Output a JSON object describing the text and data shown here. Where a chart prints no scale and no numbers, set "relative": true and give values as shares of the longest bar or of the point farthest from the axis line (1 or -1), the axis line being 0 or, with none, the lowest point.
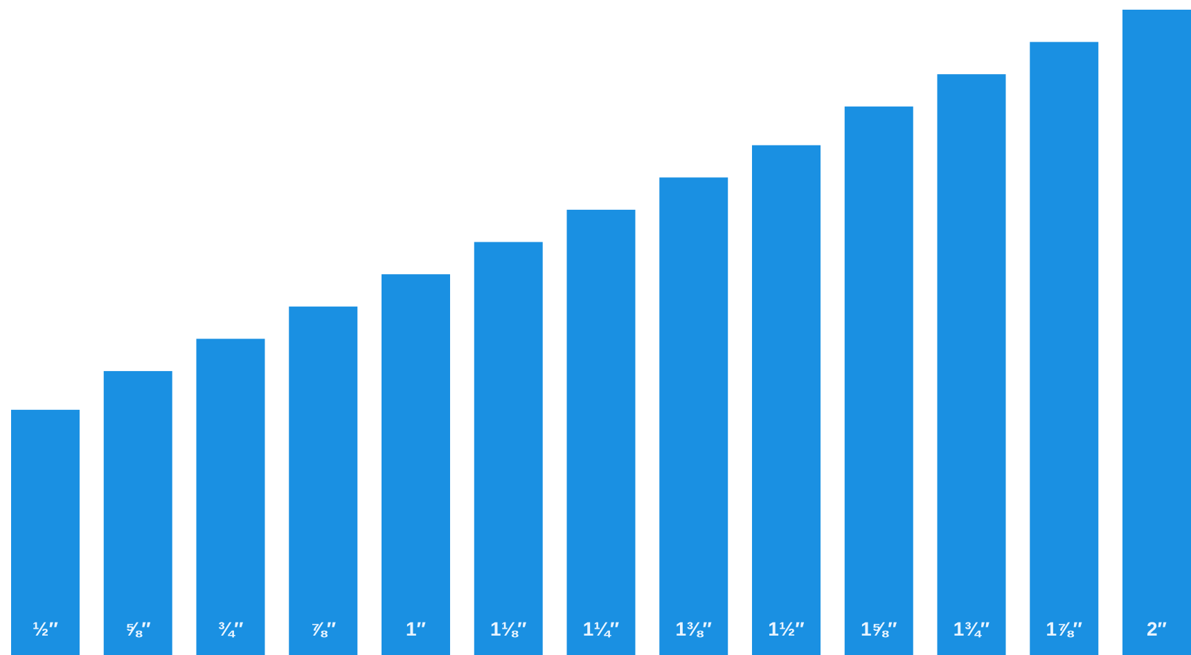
{
  "chart_data": {
    "type": "bar",
    "relative": true,
    "categories": [
      "½″",
      "⅝″",
      "¾″",
      "⅞″",
      "1″",
      "1⅛″",
      "1¼″",
      "1⅜″",
      "1½″",
      "1⅝″",
      "1¾″",
      "1⅞″",
      "2″"
    ],
    "values": [
      0.38,
      0.44,
      0.49,
      0.54,
      0.59,
      0.64,
      0.69,
      0.74,
      0.79,
      0.85,
      0.9,
      0.95,
      1
    ],
    "color": "#1a90e2"
  }
}
